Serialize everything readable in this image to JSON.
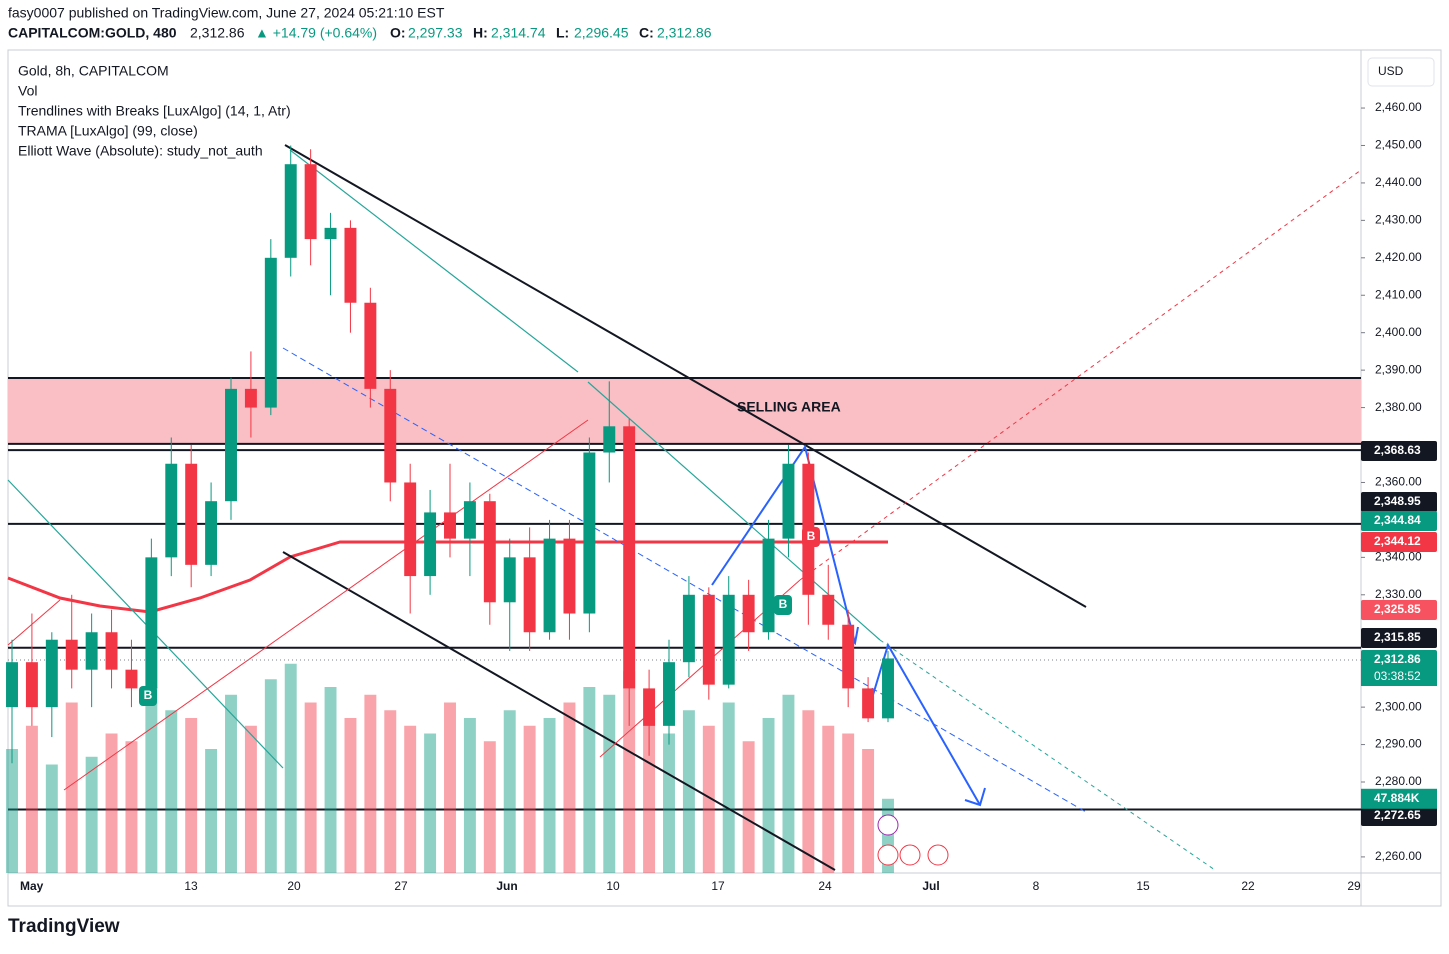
{
  "header": {
    "publisher": "fasy0007 published on TradingView.com, June 27, 2024 05:21:10 EST",
    "symbol": "CAPITALCOM:GOLD, 480",
    "last": "2,312.86",
    "change": "▲ +14.79 (+0.64%)",
    "ohlc": [
      {
        "key": "O:",
        "value": "2,297.33"
      },
      {
        "key": "H:",
        "value": "2,314.74"
      },
      {
        "key": "L:",
        "value": "2,296.45"
      },
      {
        "key": "C:",
        "value": "2,312.86"
      }
    ]
  },
  "legend": [
    "Gold, 8h, CAPITALCOM",
    "Vol",
    "Trendlines with Breaks [LuxAlgo] (14, 1, Atr)",
    "TRAMA [LuxAlgo] (99, close)",
    "Elliott Wave (Absolute): study_not_auth"
  ],
  "chart_data": {
    "type": "candlestick",
    "currency": "USD",
    "annotation": "SELLING AREA",
    "selling_area": [
      2370.3,
      2387.9
    ],
    "signals": [
      "B",
      "B",
      "B"
    ],
    "up_color": "#089981",
    "down_color": "#f23645",
    "candles": {
      "open": [
        2300,
        2312,
        2300,
        2318,
        2310,
        2320,
        2310,
        2305,
        2340,
        2365,
        2338,
        2355,
        2385,
        2380,
        2420,
        2445,
        2425,
        2428,
        2408,
        2385,
        2360,
        2335,
        2352,
        2345,
        2355,
        2328,
        2340,
        2320,
        2345,
        2325,
        2368,
        2375,
        2305,
        2295,
        2312,
        2330,
        2306,
        2330,
        2320,
        2345,
        2365,
        2330,
        2322,
        2305,
        2297
      ],
      "high": [
        2318,
        2325,
        2320,
        2330,
        2325,
        2326,
        2318,
        2345,
        2372,
        2370,
        2360,
        2388,
        2395,
        2425,
        2450,
        2449,
        2432,
        2430,
        2412,
        2390,
        2365,
        2358,
        2365,
        2360,
        2357,
        2345,
        2348,
        2350,
        2350,
        2372,
        2387,
        2377,
        2310,
        2318,
        2335,
        2332,
        2335,
        2334,
        2350,
        2370,
        2368,
        2338,
        2326,
        2308,
        2315
      ],
      "low": [
        2285,
        2295,
        2292,
        2305,
        2300,
        2305,
        2300,
        2303,
        2335,
        2332,
        2335,
        2350,
        2372,
        2378,
        2415,
        2418,
        2410,
        2400,
        2380,
        2355,
        2325,
        2330,
        2340,
        2335,
        2322,
        2315,
        2315,
        2318,
        2318,
        2320,
        2360,
        2295,
        2287,
        2290,
        2308,
        2302,
        2305,
        2315,
        2318,
        2340,
        2322,
        2318,
        2300,
        2296,
        2296
      ],
      "close": [
        2312,
        2300,
        2318,
        2310,
        2320,
        2310,
        2305,
        2340,
        2365,
        2338,
        2355,
        2385,
        2380,
        2420,
        2445,
        2425,
        2428,
        2408,
        2385,
        2360,
        2335,
        2352,
        2345,
        2355,
        2328,
        2340,
        2320,
        2345,
        2325,
        2368,
        2375,
        2305,
        2295,
        2312,
        2330,
        2306,
        2330,
        2320,
        2345,
        2365,
        2330,
        2322,
        2305,
        2297,
        2313
      ]
    },
    "volume": [
      80,
      95,
      70,
      110,
      75,
      90,
      85,
      120,
      105,
      100,
      80,
      115,
      95,
      125,
      135,
      110,
      120,
      100,
      115,
      105,
      95,
      90,
      110,
      100,
      85,
      105,
      95,
      100,
      110,
      120,
      115,
      130,
      100,
      90,
      105,
      95,
      110,
      85,
      100,
      115,
      105,
      95,
      90,
      80,
      47.884
    ],
    "volume_label": "47.884K",
    "countdown": "03:38:52",
    "ylim": [
      2255.7,
      2475.5
    ],
    "yticks": [
      {
        "value": 2460,
        "label": "2,460.00"
      },
      {
        "value": 2450,
        "label": "2,450.00"
      },
      {
        "value": 2440,
        "label": "2,440.00"
      },
      {
        "value": 2430,
        "label": "2,430.00"
      },
      {
        "value": 2420,
        "label": "2,420.00"
      },
      {
        "value": 2410,
        "label": "2,410.00"
      },
      {
        "value": 2400,
        "label": "2,400.00"
      },
      {
        "value": 2390,
        "label": "2,390.00"
      },
      {
        "value": 2380,
        "label": "2,380.00"
      },
      {
        "value": 2360,
        "label": "2,360.00"
      },
      {
        "value": 2340,
        "label": "2,340.00"
      },
      {
        "value": 2330,
        "label": "2,330.00"
      },
      {
        "value": 2300,
        "label": "2,300.00"
      },
      {
        "value": 2290,
        "label": "2,290.00"
      },
      {
        "value": 2280,
        "label": "2,280.00"
      },
      {
        "value": 2260,
        "label": "2,260.00"
      }
    ],
    "xticks": [
      "May",
      "13",
      "20",
      "27",
      "Jun",
      "10",
      "17",
      "24",
      "Jul",
      "8",
      "15",
      "22",
      "29"
    ],
    "levels": [
      {
        "value": 2368.63,
        "label": "2,368.63"
      },
      {
        "value": 2348.95,
        "label": "2,348.95"
      },
      {
        "value": 2315.85,
        "label": "2,315.85"
      },
      {
        "value": 2272.65,
        "label": "2,272.65"
      }
    ],
    "price_labels": [
      {
        "value": 2344.84,
        "label": "2,344.84",
        "color": "#089981"
      },
      {
        "value": 2344.12,
        "label": "2,344.12",
        "color": "#f23645"
      },
      {
        "value": 2325.85,
        "label": "2,325.85",
        "color": "#f7525f"
      },
      {
        "value": 2312.86,
        "label": "2,312.86",
        "color": "#089981"
      }
    ]
  },
  "footer": "TradingView"
}
